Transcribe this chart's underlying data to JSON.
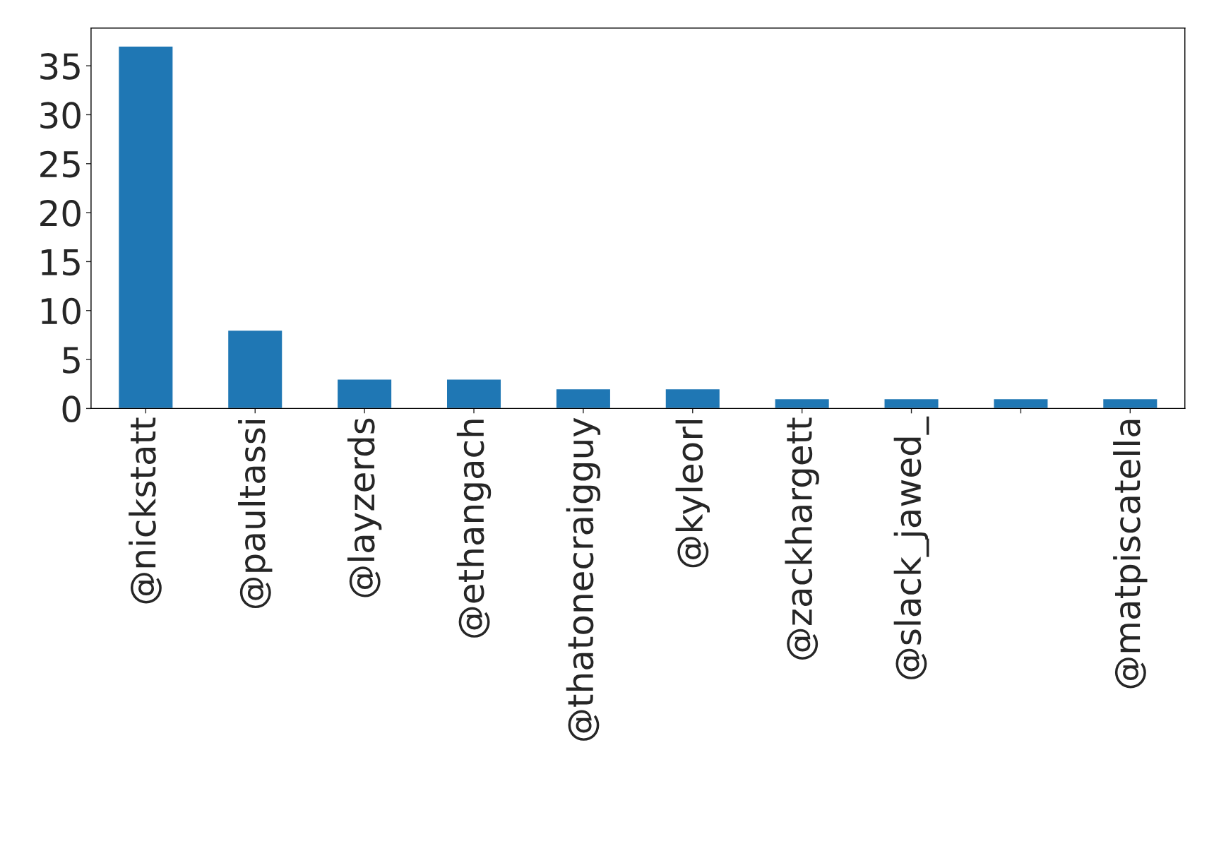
{
  "chart_data": {
    "type": "bar",
    "categories": [
      "@nickstatt",
      "@paultassi",
      "@layzerds",
      "@ethangach",
      "@thatonecraigguy",
      "@kyleorl",
      "@zackhargett",
      "@slack_jawed_",
      null,
      "@matpiscatella"
    ],
    "values": [
      37,
      8,
      3,
      3,
      2,
      2,
      1,
      1,
      1,
      1
    ],
    "color": "#1f77b4",
    "ylim": [
      0,
      38.85
    ],
    "yticks": [
      0,
      5,
      10,
      15,
      20,
      25,
      30,
      35
    ],
    "grid": false
  }
}
